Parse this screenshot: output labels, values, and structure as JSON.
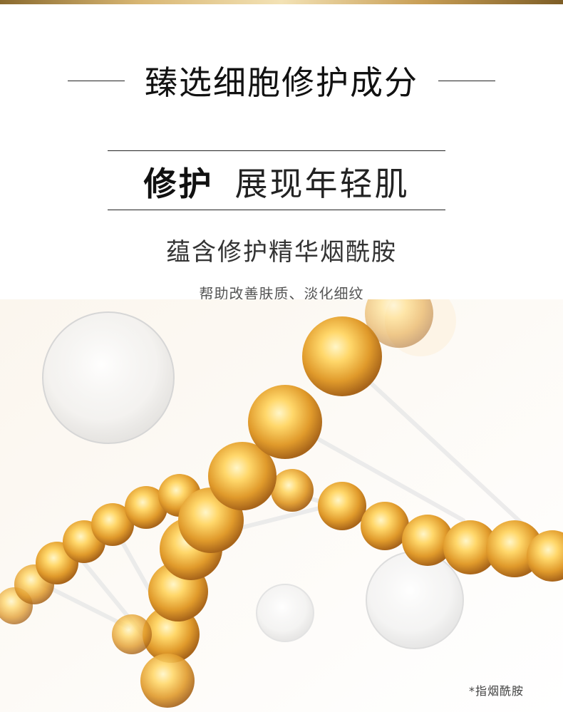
{
  "heading": {
    "title": "臻选细胞修护成分"
  },
  "slogan": {
    "strong": "修护",
    "light": "展现年轻肌"
  },
  "ingredient_line": "蕴含修护精华烟酰胺",
  "benefits_line": "帮助改善肤质、淡化细纹",
  "footnote": "*指烟酰胺",
  "colors": {
    "gold": "#d9a43a",
    "gold_light": "#ffe9a8",
    "text_dark": "#111111"
  }
}
